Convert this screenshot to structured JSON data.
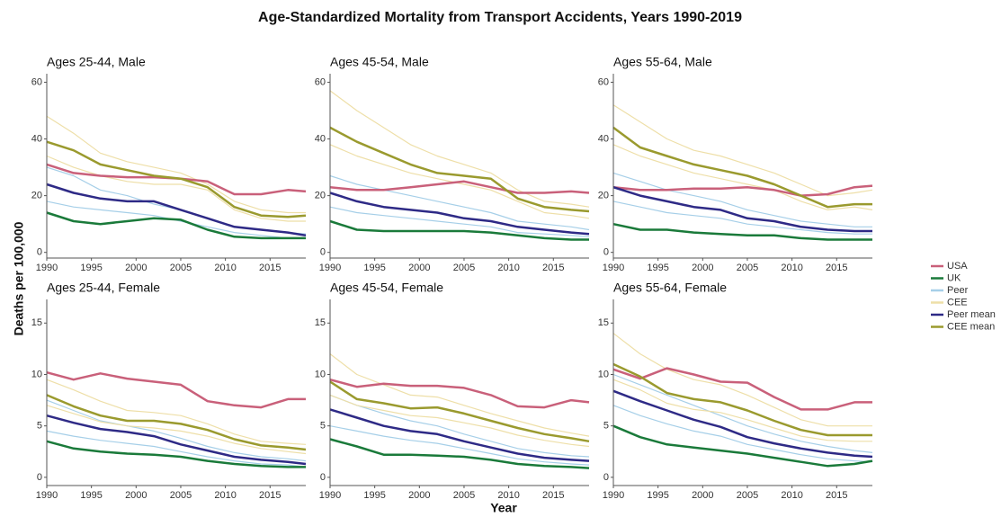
{
  "title": "Age-Standardized Mortality from Transport Accidents, Years 1990-2019",
  "xlabel": "Year",
  "ylabel": "Deaths per 100,000",
  "chart_data": [
    {
      "type": "line",
      "title": "Ages 25-44, Male",
      "x": [
        1990,
        1993,
        1996,
        1999,
        2002,
        2005,
        2008,
        2011,
        2014,
        2017,
        2019
      ],
      "xlim": [
        1990,
        2019
      ],
      "xticks": [
        1990,
        1995,
        2000,
        2005,
        2010,
        2015
      ],
      "ylim": [
        -2,
        63
      ],
      "yticks": [
        0,
        20,
        40,
        60
      ],
      "series": [
        {
          "name": "USA",
          "color": "#c9607a",
          "linewidth": 2.5,
          "values": [
            31,
            28,
            27,
            26.5,
            26.5,
            26,
            25,
            20.5,
            20.5,
            22,
            21.5
          ]
        },
        {
          "name": "UK",
          "color": "#1a7a3a",
          "linewidth": 2.5,
          "values": [
            14,
            11,
            10,
            11,
            12,
            11.5,
            8,
            5.5,
            5,
            5,
            5
          ]
        },
        {
          "name": "Peer",
          "color": "#a6cfe8",
          "linewidth": 1.2,
          "values": [
            30,
            27,
            22,
            20,
            17,
            15,
            12,
            9,
            8,
            7,
            6.5
          ]
        },
        {
          "name": "CEE",
          "color": "#eedfa8",
          "linewidth": 1.2,
          "values": [
            48,
            42,
            35,
            32,
            30,
            28,
            24,
            18,
            15,
            14,
            14
          ]
        },
        {
          "name": "Peer mean",
          "color": "#2e2a86",
          "linewidth": 2.5,
          "values": [
            24,
            21,
            19,
            18,
            18,
            15,
            12,
            9,
            8,
            7,
            6
          ]
        },
        {
          "name": "CEE mean",
          "color": "#9a9a2e",
          "linewidth": 2.5,
          "values": [
            39,
            36,
            31,
            29,
            27,
            26,
            23,
            16,
            13,
            12.5,
            13
          ]
        },
        {
          "name": "Peer",
          "color": "#a6cfe8",
          "linewidth": 1.2,
          "values": [
            18,
            16,
            15,
            14,
            13,
            11,
            9,
            7,
            6,
            5,
            5
          ]
        },
        {
          "name": "CEE",
          "color": "#eedfa8",
          "linewidth": 1.2,
          "values": [
            34,
            30,
            27,
            25,
            24,
            24,
            22,
            15,
            12,
            11,
            11
          ]
        }
      ]
    },
    {
      "type": "line",
      "title": "Ages 45-54, Male",
      "x": [
        1990,
        1993,
        1996,
        1999,
        2002,
        2005,
        2008,
        2011,
        2014,
        2017,
        2019
      ],
      "xlim": [
        1990,
        2019
      ],
      "xticks": [
        1990,
        1995,
        2000,
        2005,
        2010,
        2015
      ],
      "ylim": [
        -2,
        63
      ],
      "yticks": [
        0,
        20,
        40,
        60
      ],
      "series": [
        {
          "name": "USA",
          "color": "#c9607a",
          "linewidth": 2.5,
          "values": [
            23,
            22,
            22,
            23,
            24,
            25,
            23,
            21,
            21,
            21.5,
            21
          ]
        },
        {
          "name": "UK",
          "color": "#1a7a3a",
          "linewidth": 2.5,
          "values": [
            11,
            8,
            7.5,
            7.5,
            7.5,
            7.5,
            7,
            6,
            5,
            4.5,
            4.5
          ]
        },
        {
          "name": "Peer",
          "color": "#a6cfe8",
          "linewidth": 1.2,
          "values": [
            27,
            24,
            22,
            20,
            18,
            16,
            14,
            11,
            10,
            9,
            8
          ]
        },
        {
          "name": "CEE",
          "color": "#eedfa8",
          "linewidth": 1.2,
          "values": [
            57,
            50,
            44,
            38,
            34,
            31,
            28,
            22,
            18,
            17,
            16
          ]
        },
        {
          "name": "Peer mean",
          "color": "#2e2a86",
          "linewidth": 2.5,
          "values": [
            21,
            18,
            16,
            15,
            14,
            12,
            11,
            9,
            8,
            7,
            6.5
          ]
        },
        {
          "name": "CEE mean",
          "color": "#9a9a2e",
          "linewidth": 2.5,
          "values": [
            44,
            39,
            35,
            31,
            28,
            27,
            26,
            19,
            16,
            15,
            14.5
          ]
        },
        {
          "name": "Peer",
          "color": "#a6cfe8",
          "linewidth": 1.2,
          "values": [
            16,
            14,
            13,
            12,
            11,
            10,
            9,
            7,
            6.5,
            6,
            5.5
          ]
        },
        {
          "name": "CEE",
          "color": "#eedfa8",
          "linewidth": 1.2,
          "values": [
            38,
            34,
            31,
            28,
            26,
            24,
            22,
            18,
            14,
            13,
            12
          ]
        }
      ]
    },
    {
      "type": "line",
      "title": "Ages 55-64, Male",
      "x": [
        1990,
        1993,
        1996,
        1999,
        2002,
        2005,
        2008,
        2011,
        2014,
        2017,
        2019
      ],
      "xlim": [
        1990,
        2019
      ],
      "xticks": [
        1990,
        1995,
        2000,
        2005,
        2010,
        2015
      ],
      "ylim": [
        -2,
        63
      ],
      "yticks": [
        0,
        20,
        40,
        60
      ],
      "series": [
        {
          "name": "USA",
          "color": "#c9607a",
          "linewidth": 2.5,
          "values": [
            23,
            22,
            22,
            22.5,
            22.5,
            23,
            22,
            20,
            20.5,
            23,
            23.5
          ]
        },
        {
          "name": "UK",
          "color": "#1a7a3a",
          "linewidth": 2.5,
          "values": [
            10,
            8,
            8,
            7,
            6.5,
            6,
            6,
            5,
            4.5,
            4.5,
            4.5
          ]
        },
        {
          "name": "Peer",
          "color": "#a6cfe8",
          "linewidth": 1.2,
          "values": [
            28,
            25,
            22,
            20,
            18,
            15,
            13,
            11,
            10,
            9,
            9
          ]
        },
        {
          "name": "CEE",
          "color": "#eedfa8",
          "linewidth": 1.2,
          "values": [
            52,
            46,
            40,
            36,
            34,
            31,
            28,
            24,
            20,
            21,
            22
          ]
        },
        {
          "name": "Peer mean",
          "color": "#2e2a86",
          "linewidth": 2.5,
          "values": [
            23,
            20,
            18,
            16,
            15,
            12,
            11,
            9,
            8,
            7.5,
            7.5
          ]
        },
        {
          "name": "CEE mean",
          "color": "#9a9a2e",
          "linewidth": 2.5,
          "values": [
            44,
            37,
            34,
            31,
            29,
            27,
            24,
            20,
            16,
            17,
            17
          ]
        },
        {
          "name": "Peer",
          "color": "#a6cfe8",
          "linewidth": 1.2,
          "values": [
            18,
            16,
            14,
            13,
            12,
            10,
            9,
            8,
            7,
            6.5,
            6.5
          ]
        },
        {
          "name": "CEE",
          "color": "#eedfa8",
          "linewidth": 1.2,
          "values": [
            38,
            34,
            31,
            28,
            26,
            24,
            22,
            18,
            15,
            16,
            15
          ]
        }
      ]
    },
    {
      "type": "line",
      "title": "Ages 25-44, Female",
      "x": [
        1990,
        1993,
        1996,
        1999,
        2002,
        2005,
        2008,
        2011,
        2014,
        2017,
        2019
      ],
      "xlim": [
        1990,
        2019
      ],
      "xticks": [
        1990,
        1995,
        2000,
        2005,
        2010,
        2015
      ],
      "ylim": [
        -0.8,
        17.3
      ],
      "yticks": [
        0,
        5,
        10,
        15
      ],
      "series": [
        {
          "name": "USA",
          "color": "#c9607a",
          "linewidth": 2.5,
          "values": [
            10.2,
            9.5,
            10.1,
            9.6,
            9.3,
            9,
            7.4,
            7,
            6.8,
            7.6,
            7.6
          ]
        },
        {
          "name": "UK",
          "color": "#1a7a3a",
          "linewidth": 2.5,
          "values": [
            3.5,
            2.8,
            2.5,
            2.3,
            2.2,
            2,
            1.6,
            1.3,
            1.1,
            1,
            1
          ]
        },
        {
          "name": "Peer",
          "color": "#a6cfe8",
          "linewidth": 1.2,
          "values": [
            7.5,
            6.5,
            5.5,
            5,
            4.5,
            3.8,
            3,
            2.4,
            2,
            1.8,
            1.6
          ]
        },
        {
          "name": "CEE",
          "color": "#eedfa8",
          "linewidth": 1.2,
          "values": [
            9.5,
            8.5,
            7.4,
            6.5,
            6.3,
            6,
            5.2,
            4.2,
            3.5,
            3.3,
            3.2
          ]
        },
        {
          "name": "Peer mean",
          "color": "#2e2a86",
          "linewidth": 2.5,
          "values": [
            6,
            5.3,
            4.7,
            4.4,
            4,
            3.2,
            2.6,
            2,
            1.7,
            1.5,
            1.3
          ]
        },
        {
          "name": "CEE mean",
          "color": "#9a9a2e",
          "linewidth": 2.5,
          "values": [
            8,
            6.9,
            6,
            5.5,
            5.5,
            5.2,
            4.6,
            3.7,
            3.1,
            2.9,
            2.7
          ]
        },
        {
          "name": "Peer",
          "color": "#a6cfe8",
          "linewidth": 1.2,
          "values": [
            4.5,
            4,
            3.6,
            3.3,
            3,
            2.5,
            2,
            1.6,
            1.3,
            1.2,
            1
          ]
        },
        {
          "name": "CEE",
          "color": "#eedfa8",
          "linewidth": 1.2,
          "values": [
            7,
            6.2,
            5.4,
            5,
            4.8,
            4.5,
            4,
            3.3,
            2.8,
            2.5,
            2.3
          ]
        }
      ]
    },
    {
      "type": "line",
      "title": "Ages 45-54, Female",
      "x": [
        1990,
        1993,
        1996,
        1999,
        2002,
        2005,
        2008,
        2011,
        2014,
        2017,
        2019
      ],
      "xlim": [
        1990,
        2019
      ],
      "xticks": [
        1990,
        1995,
        2000,
        2005,
        2010,
        2015
      ],
      "ylim": [
        -0.8,
        17.3
      ],
      "yticks": [
        0,
        5,
        10,
        15
      ],
      "series": [
        {
          "name": "USA",
          "color": "#c9607a",
          "linewidth": 2.5,
          "values": [
            9.5,
            8.8,
            9.1,
            8.9,
            8.9,
            8.7,
            8,
            6.9,
            6.8,
            7.5,
            7.3
          ]
        },
        {
          "name": "UK",
          "color": "#1a7a3a",
          "linewidth": 2.5,
          "values": [
            3.7,
            3,
            2.2,
            2.2,
            2.1,
            2,
            1.7,
            1.3,
            1.1,
            1,
            0.9
          ]
        },
        {
          "name": "Peer",
          "color": "#a6cfe8",
          "linewidth": 1.2,
          "values": [
            8,
            7,
            6.2,
            5.5,
            5,
            4.2,
            3.5,
            2.8,
            2.4,
            2.1,
            2
          ]
        },
        {
          "name": "CEE",
          "color": "#eedfa8",
          "linewidth": 1.2,
          "values": [
            12,
            10,
            9,
            8,
            7.8,
            7,
            6.2,
            5.5,
            4.8,
            4.3,
            4
          ]
        },
        {
          "name": "Peer mean",
          "color": "#2e2a86",
          "linewidth": 2.5,
          "values": [
            6.6,
            5.8,
            5,
            4.5,
            4.2,
            3.5,
            2.9,
            2.3,
            1.9,
            1.7,
            1.6
          ]
        },
        {
          "name": "CEE mean",
          "color": "#9a9a2e",
          "linewidth": 2.5,
          "values": [
            9.3,
            7.6,
            7.2,
            6.7,
            6.8,
            6.2,
            5.5,
            4.8,
            4.2,
            3.8,
            3.5
          ]
        },
        {
          "name": "Peer",
          "color": "#a6cfe8",
          "linewidth": 1.2,
          "values": [
            5,
            4.5,
            4,
            3.6,
            3.3,
            2.8,
            2.3,
            1.8,
            1.5,
            1.3,
            1.2
          ]
        },
        {
          "name": "CEE",
          "color": "#eedfa8",
          "linewidth": 1.2,
          "values": [
            8,
            7,
            6.5,
            6,
            5.8,
            5.3,
            4.8,
            4.1,
            3.6,
            3.2,
            3
          ]
        }
      ]
    },
    {
      "type": "line",
      "title": "Ages 55-64, Female",
      "x": [
        1990,
        1993,
        1996,
        1999,
        2002,
        2005,
        2008,
        2011,
        2014,
        2017,
        2019
      ],
      "xlim": [
        1990,
        2019
      ],
      "xticks": [
        1990,
        1995,
        2000,
        2005,
        2010,
        2015
      ],
      "ylim": [
        -0.8,
        17.3
      ],
      "yticks": [
        0,
        5,
        10,
        15
      ],
      "series": [
        {
          "name": "USA",
          "color": "#c9607a",
          "linewidth": 2.5,
          "values": [
            10.5,
            9.6,
            10.6,
            10,
            9.3,
            9.2,
            7.8,
            6.6,
            6.6,
            7.3,
            7.3
          ]
        },
        {
          "name": "UK",
          "color": "#1a7a3a",
          "linewidth": 2.5,
          "values": [
            5,
            3.9,
            3.2,
            2.9,
            2.6,
            2.3,
            1.9,
            1.5,
            1.1,
            1.3,
            1.6
          ]
        },
        {
          "name": "Peer",
          "color": "#a6cfe8",
          "linewidth": 1.2,
          "values": [
            10,
            9,
            8,
            7,
            6,
            5,
            4.2,
            3.5,
            3,
            2.6,
            2.4
          ]
        },
        {
          "name": "CEE",
          "color": "#eedfa8",
          "linewidth": 1.2,
          "values": [
            14,
            12,
            10.5,
            9.5,
            9,
            8,
            6.8,
            5.6,
            5,
            5,
            5
          ]
        },
        {
          "name": "Peer mean",
          "color": "#2e2a86",
          "linewidth": 2.5,
          "values": [
            8.4,
            7.4,
            6.5,
            5.6,
            4.9,
            3.9,
            3.3,
            2.8,
            2.4,
            2.1,
            2
          ]
        },
        {
          "name": "CEE mean",
          "color": "#9a9a2e",
          "linewidth": 2.5,
          "values": [
            11,
            9.8,
            8.2,
            7.6,
            7.3,
            6.5,
            5.5,
            4.6,
            4.1,
            4.1,
            4.1
          ]
        },
        {
          "name": "Peer",
          "color": "#a6cfe8",
          "linewidth": 1.2,
          "values": [
            7,
            6,
            5.2,
            4.5,
            4,
            3.2,
            2.7,
            2.2,
            1.8,
            1.6,
            1.5
          ]
        },
        {
          "name": "CEE",
          "color": "#eedfa8",
          "linewidth": 1.2,
          "values": [
            9.5,
            8.5,
            7.2,
            6.6,
            6.3,
            5.6,
            4.8,
            4,
            3.6,
            3.5,
            3.5
          ]
        }
      ]
    }
  ]
}
